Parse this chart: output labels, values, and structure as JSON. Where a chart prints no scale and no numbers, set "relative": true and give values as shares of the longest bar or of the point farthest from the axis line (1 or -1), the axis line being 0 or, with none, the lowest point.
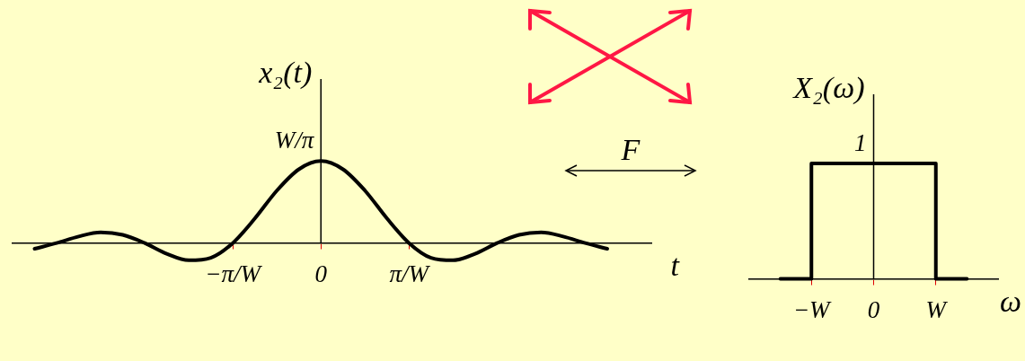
{
  "chart_data": [
    {
      "type": "line",
      "relative": true,
      "xlabel": "t",
      "ylabel": "x₂(t)",
      "marker": "none",
      "categories": [
        null,
        null,
        null,
        null,
        null,
        null,
        null,
        null,
        null,
        null,
        "−π/W",
        null,
        null,
        null,
        "0",
        null,
        null,
        null,
        "π/W",
        null,
        null,
        null,
        null,
        null,
        null,
        null,
        null,
        null,
        null,
        null
      ],
      "series": [
        {
          "color": "#000000",
          "values": [
            null,
            -0.07,
            0,
            0.08,
            0.13,
            0.1,
            0,
            -0.13,
            -0.21,
            -0.18,
            0,
            0.3,
            0.64,
            0.9,
            1,
            0.9,
            0.64,
            0.3,
            0,
            -0.18,
            -0.21,
            -0.13,
            0,
            0.1,
            0.13,
            0.08,
            0,
            -0.07,
            null,
            null
          ]
        }
      ],
      "ref_lines": [
        {
          "axis": "x",
          "value": "0",
          "color": "#000000"
        }
      ],
      "annotations": [
        {
          "text": "W/π",
          "x": "0",
          "y": 1
        }
      ]
    },
    {
      "type": "step",
      "relative": true,
      "xlabel": "ω",
      "ylabel": "X₂(ω)",
      "marker": "none",
      "categories": [
        null,
        null,
        "−W",
        null,
        "0",
        null,
        "W",
        null,
        null
      ],
      "series": [
        {
          "color": "#000000",
          "values": [
            null,
            0,
            1,
            1,
            1,
            1,
            0,
            0,
            null
          ]
        }
      ],
      "ref_lines": [
        {
          "axis": "x",
          "value": "0",
          "color": "#000000"
        }
      ],
      "annotations": [
        {
          "text": "1",
          "x": "0",
          "y": 1
        },
        "F"
      ]
    }
  ]
}
